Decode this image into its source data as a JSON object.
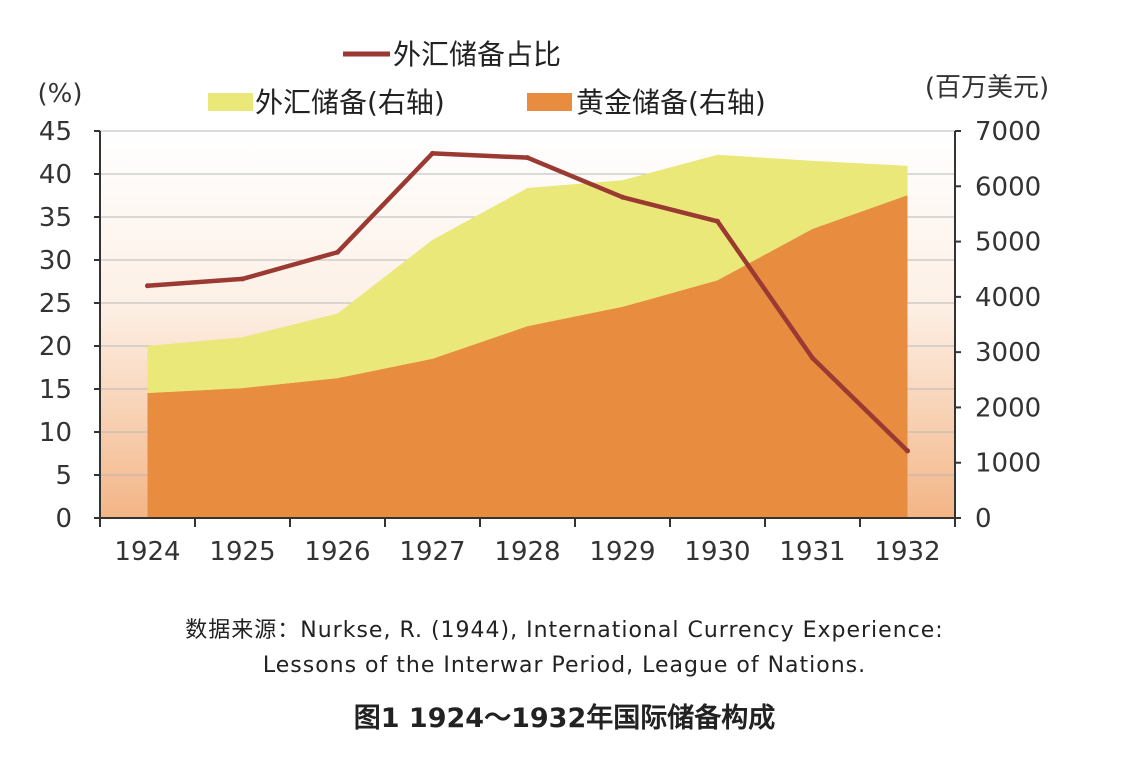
{
  "chart_data": {
    "type": "area",
    "title": "图1 1924～1932年国际储备构成",
    "categories": [
      "1924",
      "1925",
      "1926",
      "1927",
      "1928",
      "1929",
      "1930",
      "1931",
      "1932"
    ],
    "series": [
      {
        "name": "黄金储备(右轴)",
        "axis": "right",
        "stack": "reserves",
        "kind": "area",
        "color": "#e88d40",
        "values": [
          2260,
          2350,
          2530,
          2880,
          3470,
          3820,
          4300,
          5230,
          5840
        ]
      },
      {
        "name": "外汇储备(右轴)",
        "axis": "right",
        "stack": "reserves",
        "kind": "area",
        "color": "#e9e878",
        "values": [
          850,
          920,
          1170,
          2150,
          2500,
          2290,
          2270,
          1230,
          530
        ]
      },
      {
        "name": "外汇储备占比",
        "axis": "left",
        "kind": "line",
        "color": "#9b3a32",
        "values": [
          27.0,
          27.8,
          30.9,
          42.4,
          41.9,
          37.3,
          34.5,
          18.6,
          7.8
        ]
      }
    ],
    "left_axis": {
      "label": "(%)",
      "range": [
        0,
        45
      ],
      "ticks": [
        "0",
        "5",
        "10",
        "15",
        "20",
        "25",
        "30",
        "35",
        "40",
        "45"
      ]
    },
    "right_axis": {
      "label": "(百万美元)",
      "range": [
        0,
        7000
      ],
      "ticks": [
        "0",
        "1000",
        "2000",
        "3000",
        "4000",
        "5000",
        "6000",
        "7000"
      ]
    },
    "grid": true,
    "legend_placement": "top"
  },
  "caption": {
    "source_line1": "数据来源：Nurkse, R. (1944), International Currency Experience:",
    "source_line2": "Lessons of the Interwar Period, League of Nations.",
    "figure_title": "图1 1924～1932年国际储备构成"
  }
}
